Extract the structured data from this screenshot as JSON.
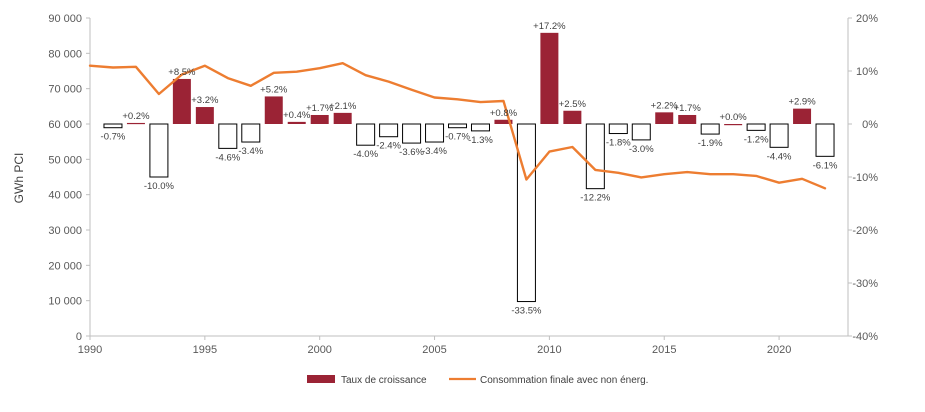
{
  "chart_data": {
    "type": "bar+line",
    "title": "",
    "ylabel": "GWh PCI",
    "ylim_left": [
      0,
      90000
    ],
    "ylim_right": [
      -40,
      20
    ],
    "left_ticks": [
      "0",
      "10 000",
      "20 000",
      "30 000",
      "40 000",
      "50 000",
      "60 000",
      "70 000",
      "80 000",
      "90 000"
    ],
    "left_tick_values": [
      0,
      10000,
      20000,
      30000,
      40000,
      50000,
      60000,
      70000,
      80000,
      90000
    ],
    "right_ticks": [
      "-40%",
      "-30%",
      "-20%",
      "-10%",
      "0%",
      "10%",
      "20%"
    ],
    "right_tick_values": [
      -40,
      -30,
      -20,
      -10,
      0,
      10,
      20
    ],
    "xlim": [
      1990,
      2023
    ],
    "x_ticks": [
      "1990",
      "1995",
      "2000",
      "2005",
      "2010",
      "2015",
      "2020"
    ],
    "x_tick_values": [
      1990,
      1995,
      2000,
      2005,
      2010,
      2015,
      2020
    ],
    "years": [
      1991,
      1992,
      1993,
      1994,
      1995,
      1996,
      1997,
      1998,
      1999,
      2000,
      2001,
      2002,
      2003,
      2004,
      2005,
      2006,
      2007,
      2008,
      2009,
      2010,
      2011,
      2012,
      2013,
      2014,
      2015,
      2016,
      2017,
      2018,
      2019,
      2020,
      2021,
      2022
    ],
    "growth_series": {
      "name": "Taux de croissance",
      "values": [
        -0.7,
        0.2,
        -10.0,
        8.5,
        3.2,
        -4.6,
        -3.4,
        5.2,
        0.4,
        1.7,
        2.1,
        -4.0,
        -2.4,
        -3.6,
        -3.4,
        -0.7,
        -1.3,
        0.8,
        -33.5,
        17.2,
        2.5,
        -12.2,
        -1.8,
        -3.0,
        2.2,
        1.7,
        -1.9,
        0.0,
        -1.2,
        -4.4,
        2.9,
        -6.1
      ],
      "labels": [
        "-0.7%",
        "+0.2%",
        "-10.0%",
        "+8.5%",
        "+3.2%",
        "-4.6%",
        "-3.4%",
        "+5.2%",
        "+0.4%",
        "+1.7%",
        "+2.1%",
        "-4.0%",
        "-2.4%",
        "-3.6%",
        "-3.4%",
        "-0.7%",
        "-1.3%",
        "+0.8%",
        "-33.5%",
        "+17.2%",
        "+2.5%",
        "-12.2%",
        "-1.8%",
        "-3.0%",
        "+2.2%",
        "+1.7%",
        "-1.9%",
        "+0.0%",
        "-1.2%",
        "-4.4%",
        "+2.9%",
        "-6.1%"
      ],
      "positive_color": "#9B2335",
      "negative_color": "#ffffff"
    },
    "consumption_series": {
      "name": "Consommation finale avec non énerg.",
      "x": [
        1990,
        1991,
        1992,
        1993,
        1994,
        1995,
        1996,
        1997,
        1998,
        1999,
        2000,
        2001,
        2002,
        2003,
        2004,
        2005,
        2006,
        2007,
        2008,
        2009,
        2010,
        2011,
        2012,
        2013,
        2014,
        2015,
        2016,
        2017,
        2018,
        2019,
        2020,
        2021,
        2022
      ],
      "values": [
        76500,
        76000,
        76200,
        68500,
        74000,
        76500,
        73000,
        70800,
        74500,
        74800,
        75800,
        77200,
        73800,
        72000,
        69700,
        67500,
        67000,
        66200,
        66500,
        44300,
        52200,
        53500,
        47000,
        46200,
        44900,
        45800,
        46400,
        45800,
        45800,
        45300,
        43400,
        44500,
        41800
      ],
      "color": "#ED7D31"
    },
    "legend": [
      {
        "label": "Taux de croissance",
        "color": "#9B2335",
        "kind": "box"
      },
      {
        "label": "Consommation finale avec non énerg.",
        "color": "#ED7D31",
        "kind": "line"
      }
    ],
    "legend_position": "bottom",
    "grid": false
  }
}
